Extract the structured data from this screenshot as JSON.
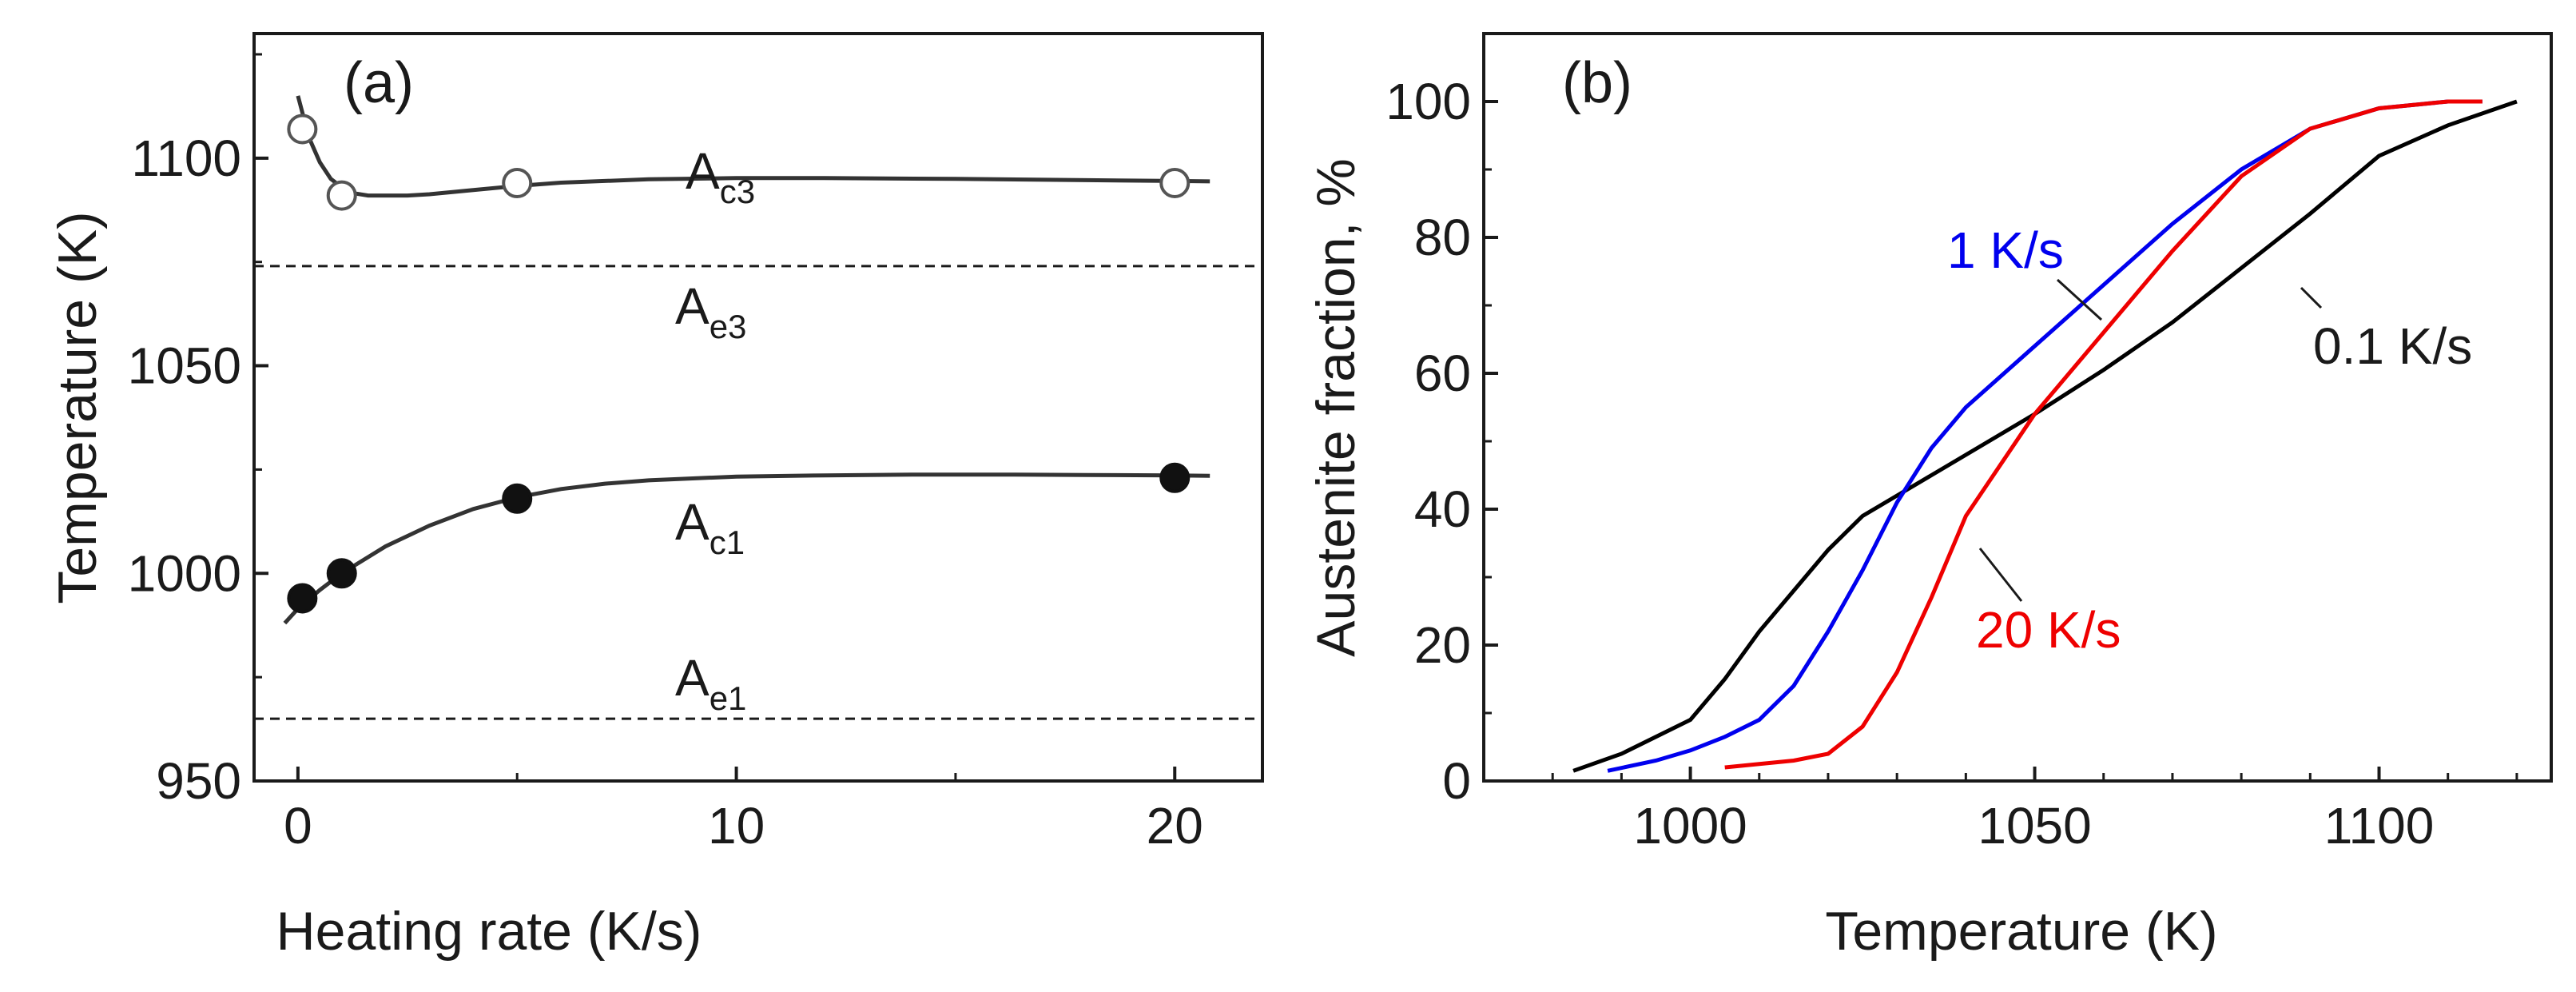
{
  "chart_data": [
    {
      "type": "scatter",
      "panel": "(a)",
      "xlabel": "Heating rate (K/s)",
      "ylabel": "Temperature (K)",
      "xlim": [
        -1,
        22
      ],
      "ylim": [
        950,
        1130
      ],
      "xticks": [
        0,
        10,
        20
      ],
      "yticks": [
        950,
        1000,
        1050,
        1100
      ],
      "series": [
        {
          "name": "Ac3",
          "marker": "open-circle",
          "x": [
            0.1,
            1,
            5,
            20
          ],
          "y": [
            1107,
            1091,
            1094,
            1094
          ],
          "fit_x": [
            0,
            0.25,
            0.5,
            0.75,
            1,
            1.3,
            1.6,
            2,
            2.5,
            3,
            4,
            5,
            6,
            8,
            10,
            12,
            15,
            18,
            20,
            20.8
          ],
          "fit_y": [
            1115,
            1105,
            1099,
            1095,
            1093,
            1091.5,
            1091,
            1091,
            1091,
            1091.3,
            1092.3,
            1093.3,
            1094.1,
            1094.9,
            1095.2,
            1095.2,
            1095,
            1094.7,
            1094.5,
            1094.4
          ]
        },
        {
          "name": "Ac1",
          "marker": "filled-circle",
          "x": [
            0.1,
            1,
            5,
            20
          ],
          "y": [
            994,
            1000,
            1018,
            1023
          ],
          "fit_x": [
            -0.3,
            0,
            0.5,
            1,
            2,
            3,
            4,
            5,
            6,
            7,
            8,
            10,
            12,
            14,
            16,
            18,
            20,
            20.8
          ],
          "fit_y": [
            988,
            991.5,
            996,
            1000,
            1006.5,
            1011.5,
            1015.5,
            1018.3,
            1020.3,
            1021.6,
            1022.4,
            1023.3,
            1023.6,
            1023.8,
            1023.8,
            1023.7,
            1023.6,
            1023.5
          ]
        }
      ],
      "reference_lines": [
        {
          "name": "Ae3",
          "y": 1074,
          "style": "dashed"
        },
        {
          "name": "Ae1",
          "y": 965,
          "style": "dashed"
        }
      ],
      "labels": {
        "ac3": {
          "main": "A",
          "sub": "c3"
        },
        "ae3": {
          "main": "A",
          "sub": "e3"
        },
        "ac1": {
          "main": "A",
          "sub": "c1"
        },
        "ae1": {
          "main": "A",
          "sub": "e1"
        }
      }
    },
    {
      "type": "line",
      "panel": "(b)",
      "xlabel": "Temperature (K)",
      "ylabel": "Austenite fraction, %",
      "xlim": [
        970,
        1125
      ],
      "ylim": [
        0,
        110
      ],
      "xticks": [
        1000,
        1050,
        1100
      ],
      "yticks": [
        0,
        20,
        40,
        60,
        80,
        100
      ],
      "series": [
        {
          "name": "0.1 K/s",
          "color": "#000000",
          "x": [
            983,
            990,
            1000,
            1005,
            1010,
            1015,
            1020,
            1025,
            1030,
            1035,
            1040,
            1050,
            1060,
            1070,
            1080,
            1090,
            1100,
            1110,
            1120
          ],
          "y": [
            1.5,
            4,
            9,
            15,
            22,
            28,
            34,
            39,
            42,
            45,
            48,
            54,
            60.5,
            67.5,
            75.5,
            83.5,
            92,
            96.5,
            100
          ]
        },
        {
          "name": "1 K/s",
          "color": "#0000ee",
          "x": [
            988,
            995,
            1000,
            1005,
            1010,
            1015,
            1020,
            1025,
            1030,
            1035,
            1040,
            1050,
            1060,
            1070,
            1080,
            1090,
            1100,
            1110,
            1115
          ],
          "y": [
            1.5,
            3,
            4.5,
            6.5,
            9,
            14,
            22,
            31,
            41,
            49,
            55,
            64,
            73,
            82,
            90,
            96,
            99,
            100,
            100
          ]
        },
        {
          "name": "20 K/s",
          "color": "#ee0000",
          "x": [
            1005,
            1010,
            1015,
            1020,
            1025,
            1030,
            1035,
            1040,
            1050,
            1060,
            1070,
            1080,
            1090,
            1100,
            1110,
            1115
          ],
          "y": [
            2,
            2.5,
            3,
            4,
            8,
            16,
            27,
            39,
            54,
            66,
            78,
            89,
            96,
            99,
            100,
            100
          ]
        }
      ],
      "annotations": [
        "1 K/s",
        "0.1 K/s",
        "20 K/s"
      ]
    }
  ]
}
